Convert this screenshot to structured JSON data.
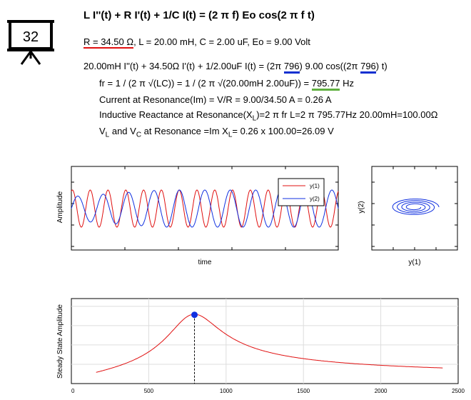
{
  "badge": {
    "number": "32"
  },
  "equation": {
    "title": "L I''(t) + R I'(t) + 1/C I(t) = (2 π f) Eo cos(2 π f t)"
  },
  "params": {
    "r_text": "R = 34.50 Ω",
    "rest": ", L = 20.00 mH, C = 2.00 uF, Eo = 9.00 Volt"
  },
  "lines": {
    "l1_a": "20.00mH I''(t) + 34.50Ω I'(t) + 1/2.00uF I(t) = (2π ",
    "l1_f1": "796",
    "l1_b": ") 9.00 cos((2π ",
    "l1_f2": "796",
    "l1_c": ") t)",
    "l2_a": "fr = 1 / (2 π √(LC)) = 1 / (2 π √(20.00mH 2.00uF)) = ",
    "l2_fr": "795.77",
    "l2_b": " Hz",
    "l3": "Current at Resonance(Im) = V/R = 9.00/34.50 A = 0.26 A",
    "l4_a": "Inductive Reactance at Resonance(X",
    "l4_sub": "L",
    "l4_b": ")=2 π fr L=2 π 795.77Hz 20.00mH=100.00Ω",
    "l5_v": "V",
    "l5_sub1": "L",
    "l5_and": " and V",
    "l5_sub2": "C",
    "l5_b": " at Resonance =Im X",
    "l5_sub3": "L",
    "l5_c": "= 0.26 x 100.00=26.09 V"
  },
  "colors": {
    "y1": "#e01010",
    "y2": "#1030e0",
    "blue_ul": "#1030d0",
    "green_ul": "#60b040",
    "marker": "#1030e0"
  },
  "chart_data": [
    {
      "type": "line",
      "xlabel": "time",
      "ylabel": "Amplitude",
      "legend_position": "top-right",
      "series": [
        {
          "name": "y(1)",
          "color": "#e01010",
          "cycles": 15,
          "phase": 1.2
        },
        {
          "name": "y(2)",
          "color": "#1030e0",
          "cycles": 10.5,
          "phase": 0
        }
      ]
    },
    {
      "type": "line",
      "xlabel": "y(1)",
      "ylabel": "y(2)",
      "description_series": "phase portrait spiral",
      "color": "#1030e0"
    },
    {
      "type": "line",
      "xlabel": "",
      "ylabel": "Steady State Amplitude",
      "x_ticks": [
        "0",
        "500",
        "1000",
        "1500",
        "2000",
        "2500"
      ],
      "xlim": [
        0,
        2500
      ],
      "ylim": [
        0,
        1.1
      ],
      "grid": true,
      "resonance_marker": {
        "x": 795.77,
        "y": 0.89
      },
      "curve": {
        "x_start": 160,
        "x_end": 2400,
        "color": "#e01010"
      }
    }
  ]
}
